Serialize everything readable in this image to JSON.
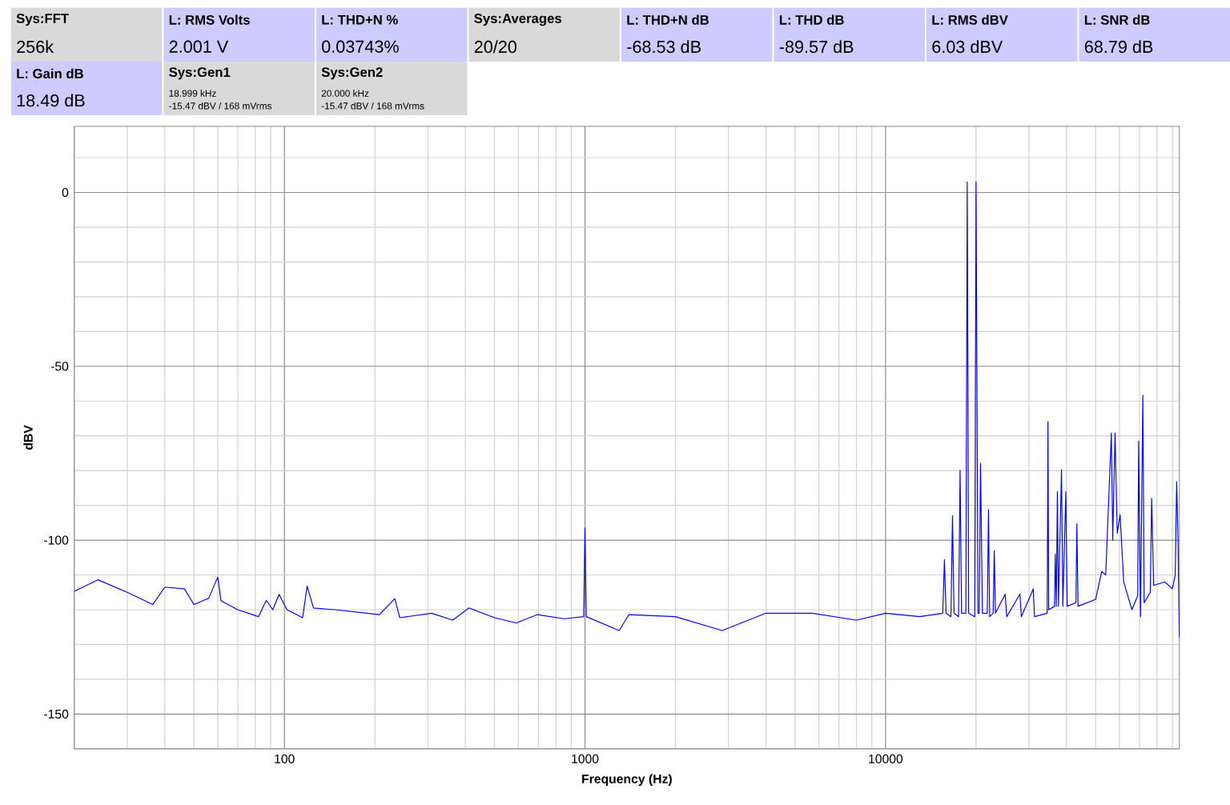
{
  "chart_data": [
    {
      "type": "other",
      "categories": [
        "Sys:FFT",
        "L: RMS Volts",
        "L: THD+N %",
        "Sys:Averages",
        "L: THD+N dB",
        "L: THD dB",
        "L: RMS dBV",
        "L: SNR dB",
        "L: Gain dB",
        "Sys:Gen1",
        "Sys:Gen2"
      ],
      "colors": [
        "#d9d9d9",
        "#ccccff",
        "#ccccff",
        "#d9d9d9",
        "#ccccff",
        "#ccccff",
        "#ccccff",
        "#ccccff",
        "#ccccff",
        "#d9d9d9",
        "#d9d9d9"
      ],
      "value_labels": [
        "256k",
        "2.001 V",
        "0.03743%",
        "20/20",
        "-68.53 dB",
        "-89.57 dB",
        "6.03 dBV",
        "68.79 dB",
        "18.49 dB",
        "18.999 kHz",
        "20.000 kHz"
      ],
      "annotations": [
        "-15.47 dBV / 168 mVrms",
        "-15.47 dBV / 168 mVrms"
      ]
    },
    {
      "type": "line",
      "xlabel": "Frequency (Hz)",
      "ylabel": "dBV",
      "log": "x",
      "grid": true,
      "marker": "none",
      "line_style": "solid",
      "xlim": [
        20,
        95000
      ],
      "ylim": [
        -160,
        19
      ],
      "xticks": [
        100,
        1000,
        10000
      ],
      "yticks": [
        -150,
        -100,
        -50,
        0
      ],
      "series": [
        {
          "color": "#0000ff",
          "x": [
            20,
            24,
            30,
            36.5,
            40,
            46.5,
            50,
            56,
            60,
            61.5,
            70,
            82,
            87,
            91.5,
            96,
            102,
            115,
            119,
            125,
            148,
            207,
            233,
            242,
            309,
            363,
            411,
            501,
            591,
            695,
            851,
            990,
            1000,
            1010,
            1300,
            1400,
            2000,
            2860,
            4000,
            5680,
            8000,
            10000,
            13000,
            15500,
            15700,
            15900,
            16500,
            16700,
            16900,
            17500,
            17700,
            17900,
            18500,
            18700,
            18900,
            19800,
            20000,
            20300,
            20500,
            20700,
            21000,
            21800,
            22000,
            22200,
            22800,
            23000,
            23200,
            25000,
            25300,
            28000,
            28300,
            31000,
            31300,
            34500,
            34700,
            34900,
            36500,
            36700,
            37000,
            37300,
            37600,
            38500,
            38900,
            39800,
            40200,
            43000,
            43300,
            43700,
            50000,
            52400,
            54000,
            56400,
            57000,
            58000,
            59000,
            60300,
            62000,
            66000,
            69000,
            69500,
            70500,
            71800,
            72500,
            76000,
            76800,
            78000,
            85000,
            90000,
            92000,
            93000,
            94000,
            94900
          ],
          "values": [
            -114.7,
            -111.4,
            -115,
            -118.5,
            -113.5,
            -114,
            -118.5,
            -116.7,
            -110.6,
            -117.4,
            -120,
            -122,
            -117.3,
            -120,
            -115.6,
            -120,
            -122.3,
            -113.2,
            -119.5,
            -120,
            -121.4,
            -116.8,
            -122.3,
            -121,
            -123,
            -119.5,
            -122.3,
            -123.8,
            -121.4,
            -122.6,
            -122,
            -96.5,
            -122,
            -126,
            -121.4,
            -122,
            -126,
            -121,
            -121,
            -123,
            -121,
            -122,
            -121,
            -105.6,
            -121,
            -122,
            -93,
            -121,
            -122,
            -79.9,
            -121,
            -121,
            3,
            -121,
            -122,
            3,
            -121,
            -121,
            -78,
            -121,
            -121,
            -91.2,
            -122,
            -121,
            -103,
            -121,
            -115.5,
            -122,
            -115.5,
            -122,
            -114,
            -122,
            -121,
            -65.9,
            -120,
            -119,
            -104,
            -119,
            -86,
            -119,
            -79.7,
            -119,
            -86,
            -119,
            -118,
            -95.3,
            -119,
            -117,
            -109,
            -110,
            -69.2,
            -100,
            -69.2,
            -98,
            -92.7,
            -112,
            -120,
            -116,
            -71.5,
            -122,
            -58.3,
            -118,
            -115,
            -88,
            -113,
            -112,
            -114,
            -110,
            -83.2,
            -100,
            -128
          ]
        }
      ]
    }
  ]
}
